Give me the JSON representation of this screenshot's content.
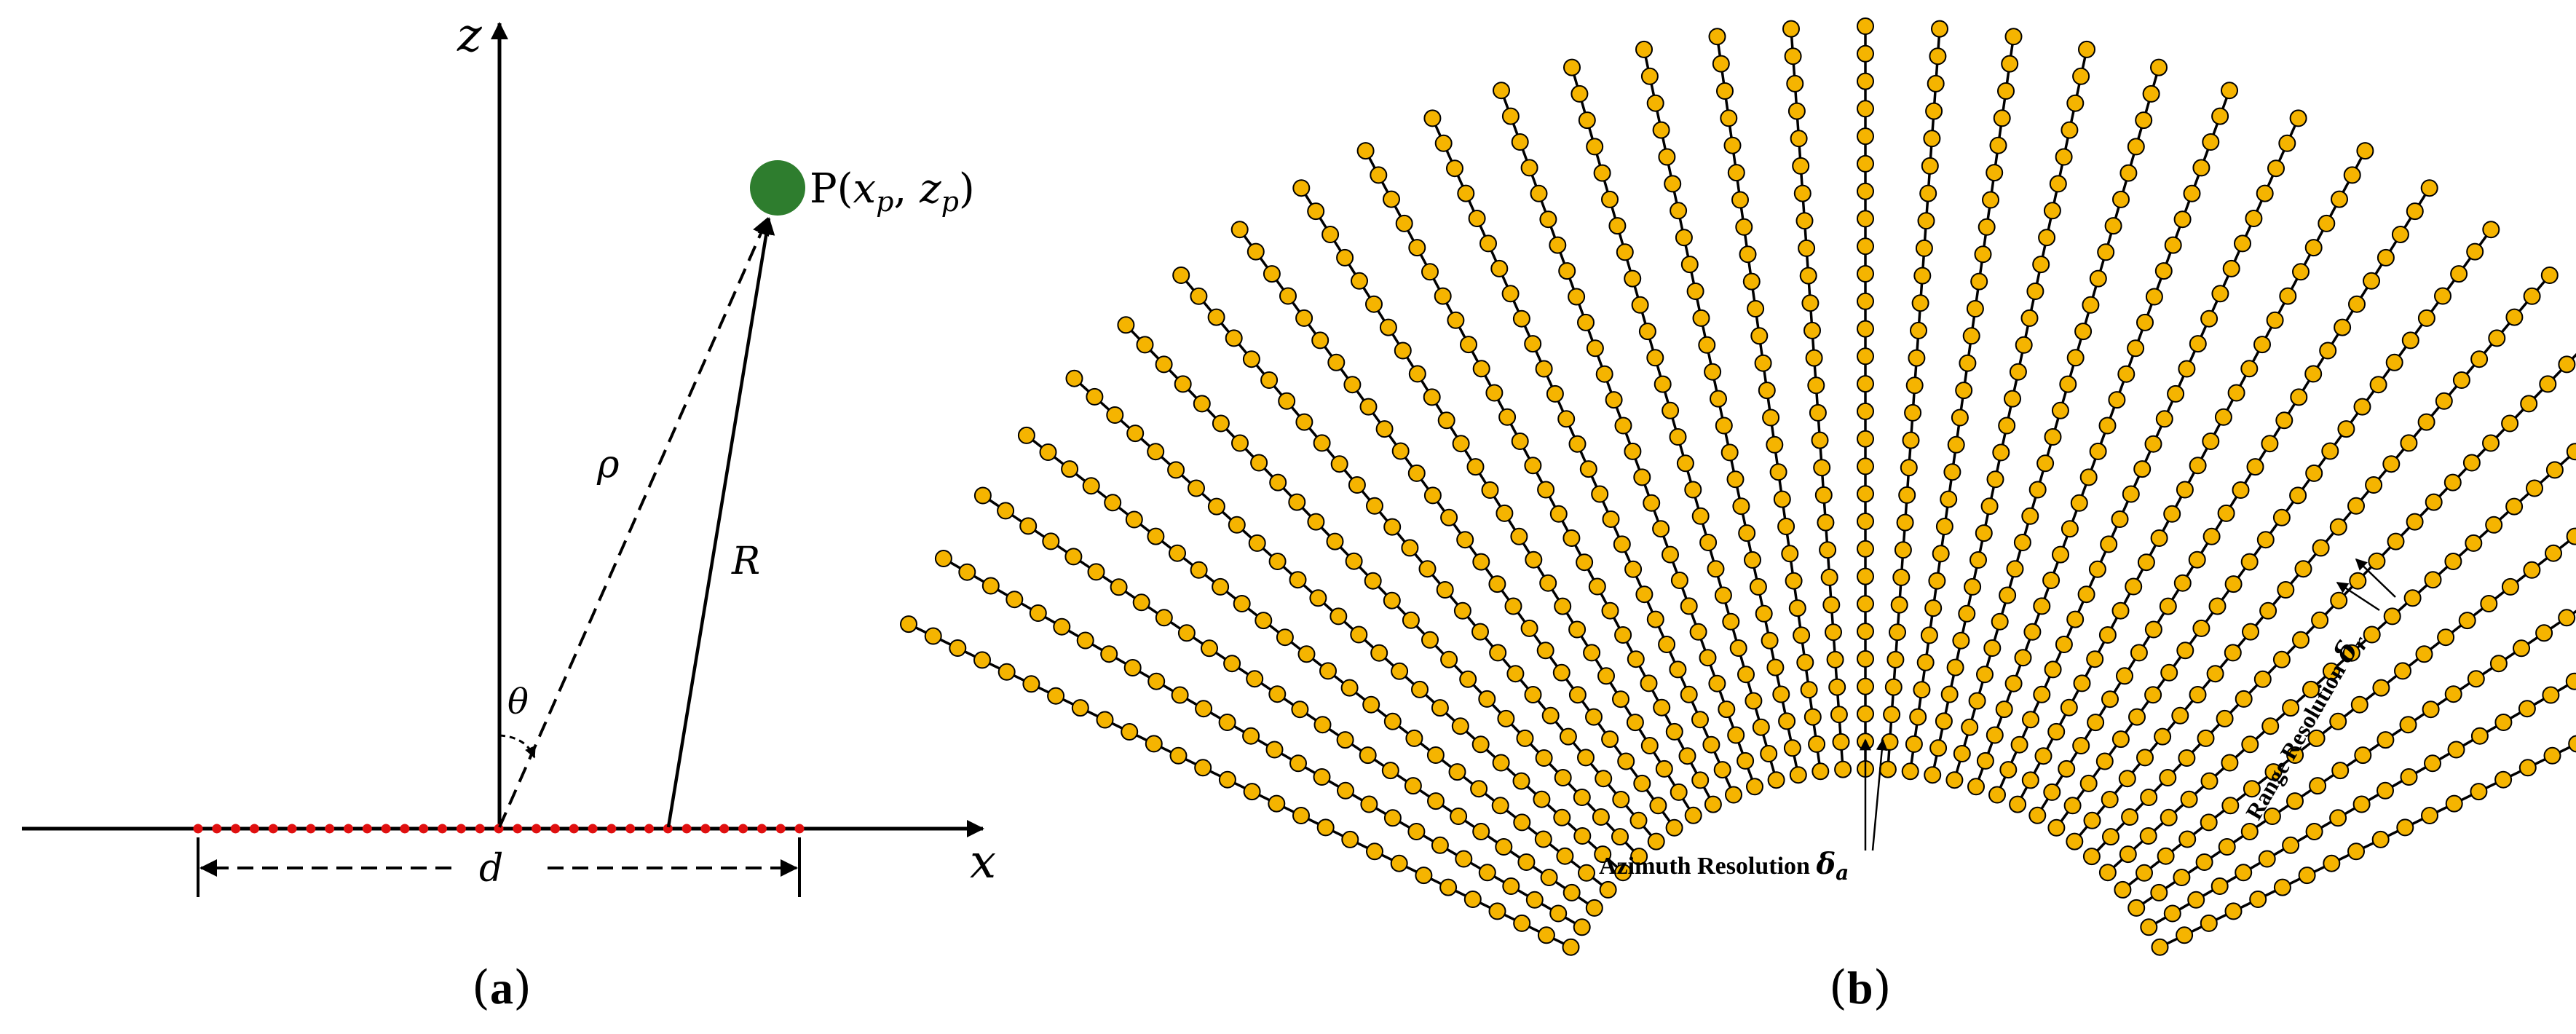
{
  "panel_a": {
    "caption_open": "(",
    "caption_letter": "a",
    "caption_close": ")",
    "axis_z": "z",
    "axis_x": "x",
    "point_prefix": "P(",
    "point_x_var": "x",
    "point_x_sub": "p",
    "point_sep": ", ",
    "point_z_var": "z",
    "point_z_sub": "p",
    "point_close": ")",
    "label_rho": "ρ",
    "label_R": "R",
    "label_theta": "θ",
    "label_d": "d",
    "array_element_count": 33,
    "colors": {
      "point": "#2e7d2e",
      "array": "#e01010",
      "axis": "#000000"
    }
  },
  "panel_b": {
    "caption_open": "(",
    "caption_letter": "b",
    "caption_close": ")",
    "azimuth_text": "Azimuth Resolution ",
    "azimuth_symbol": "δ",
    "azimuth_sub": "a",
    "range_text": "Range Resolution ",
    "range_symbol": "δ",
    "range_sub": "r",
    "grid": {
      "radial_lines": 33,
      "points_per_line": 28
    },
    "colors": {
      "node_fill": "#f5b400",
      "node_stroke": "#000000",
      "line": "#000000"
    }
  }
}
